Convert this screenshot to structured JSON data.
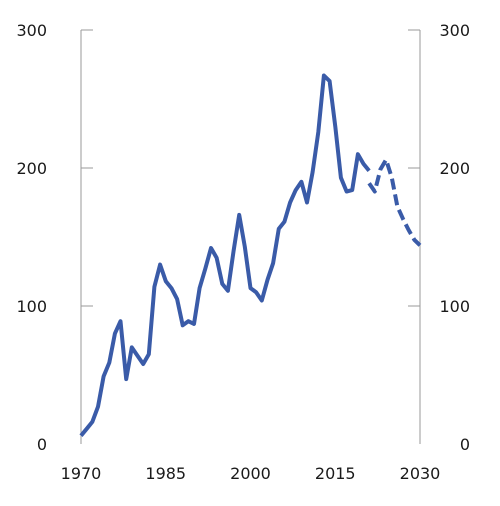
{
  "chart_data": {
    "type": "line",
    "title": "",
    "xlabel": "",
    "ylabel": "",
    "xlim": [
      1970,
      2030
    ],
    "ylim": [
      0,
      300
    ],
    "grid": "horizontal",
    "x_ticks": [
      1970,
      1985,
      2000,
      2015,
      2030
    ],
    "y_ticks": [
      0,
      100,
      200,
      300
    ],
    "series": [
      {
        "style": "solid",
        "color": "#3a5ba8",
        "x": [
          1970,
          1971,
          1972,
          1973,
          1974,
          1975,
          1976,
          1977,
          1978,
          1979,
          1980,
          1981,
          1982,
          1983,
          1984,
          1985,
          1986,
          1987,
          1988,
          1989,
          1990,
          1991,
          1992,
          1993,
          1994,
          1995,
          1996,
          1997,
          1998,
          1999,
          2000,
          2001,
          2002,
          2003,
          2004,
          2005,
          2006,
          2007,
          2008,
          2009,
          2010,
          2011,
          2012,
          2013,
          2014,
          2015,
          2016,
          2017,
          2018,
          2019,
          2020,
          2021
        ],
        "y": [
          6,
          11,
          16,
          27,
          49,
          59,
          80,
          89,
          47,
          70,
          64,
          58,
          65,
          114,
          130,
          118,
          113,
          105,
          86,
          89,
          87,
          113,
          127,
          142,
          135,
          116,
          111,
          140,
          166,
          143,
          113,
          110,
          104,
          119,
          131,
          156,
          161,
          175,
          184,
          190,
          175,
          197,
          226,
          267,
          263,
          230,
          193,
          183,
          184,
          210,
          203,
          198
        ]
      },
      {
        "style": "dashed",
        "color": "#3a5ba8",
        "x": [
          2021,
          2022,
          2023,
          2024,
          2025,
          2026,
          2027,
          2028,
          2029,
          2030
        ],
        "y": [
          189,
          183,
          199,
          206,
          193,
          172,
          163,
          155,
          148,
          144
        ]
      }
    ]
  }
}
